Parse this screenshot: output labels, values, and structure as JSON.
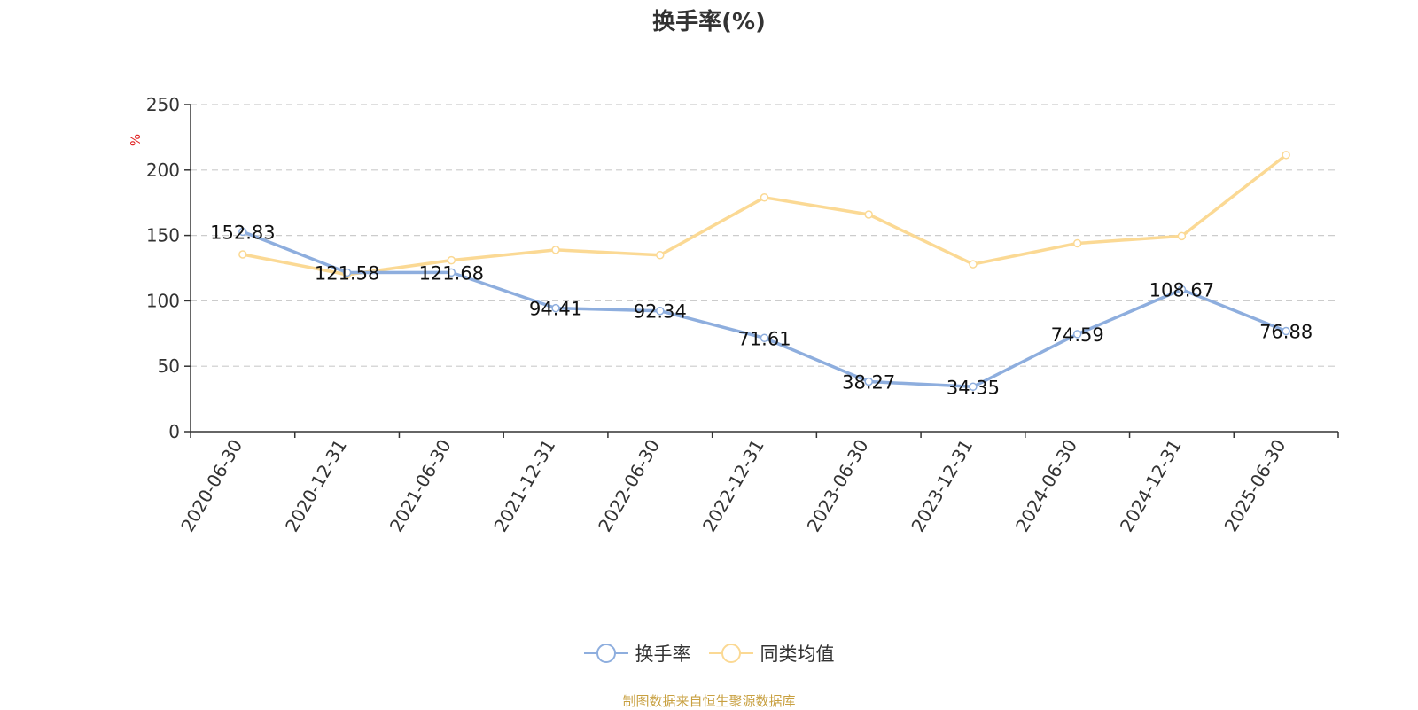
{
  "chart_data": {
    "type": "line",
    "title": "换手率(%)",
    "ylabel": "%",
    "ylim": [
      0,
      250
    ],
    "yticks": [
      0,
      50,
      100,
      150,
      200,
      250
    ],
    "grid": true,
    "legend_position": "bottom",
    "categories": [
      "2020-06-30",
      "2020-12-31",
      "2021-06-30",
      "2021-12-31",
      "2022-06-30",
      "2022-12-31",
      "2023-06-30",
      "2023-12-31",
      "2024-06-30",
      "2024-12-31",
      "2025-06-30"
    ],
    "series": [
      {
        "name": "换手率",
        "color": "#8eaede",
        "show_labels": true,
        "values": [
          152.83,
          121.58,
          121.68,
          94.41,
          92.34,
          71.61,
          38.27,
          34.35,
          74.59,
          108.67,
          76.88
        ]
      },
      {
        "name": "同类均值",
        "color": "#fbd994",
        "show_labels": false,
        "values": [
          135.5,
          120.0,
          131.0,
          139.0,
          135.0,
          179.0,
          166.0,
          128.0,
          144.0,
          149.5,
          211.5
        ]
      }
    ]
  },
  "source_note": "制图数据来自恒生聚源数据库",
  "colors": {
    "ylabel": "#e02020",
    "axis": "#333333",
    "grid": "#cccccc",
    "source": "#c8a040"
  }
}
